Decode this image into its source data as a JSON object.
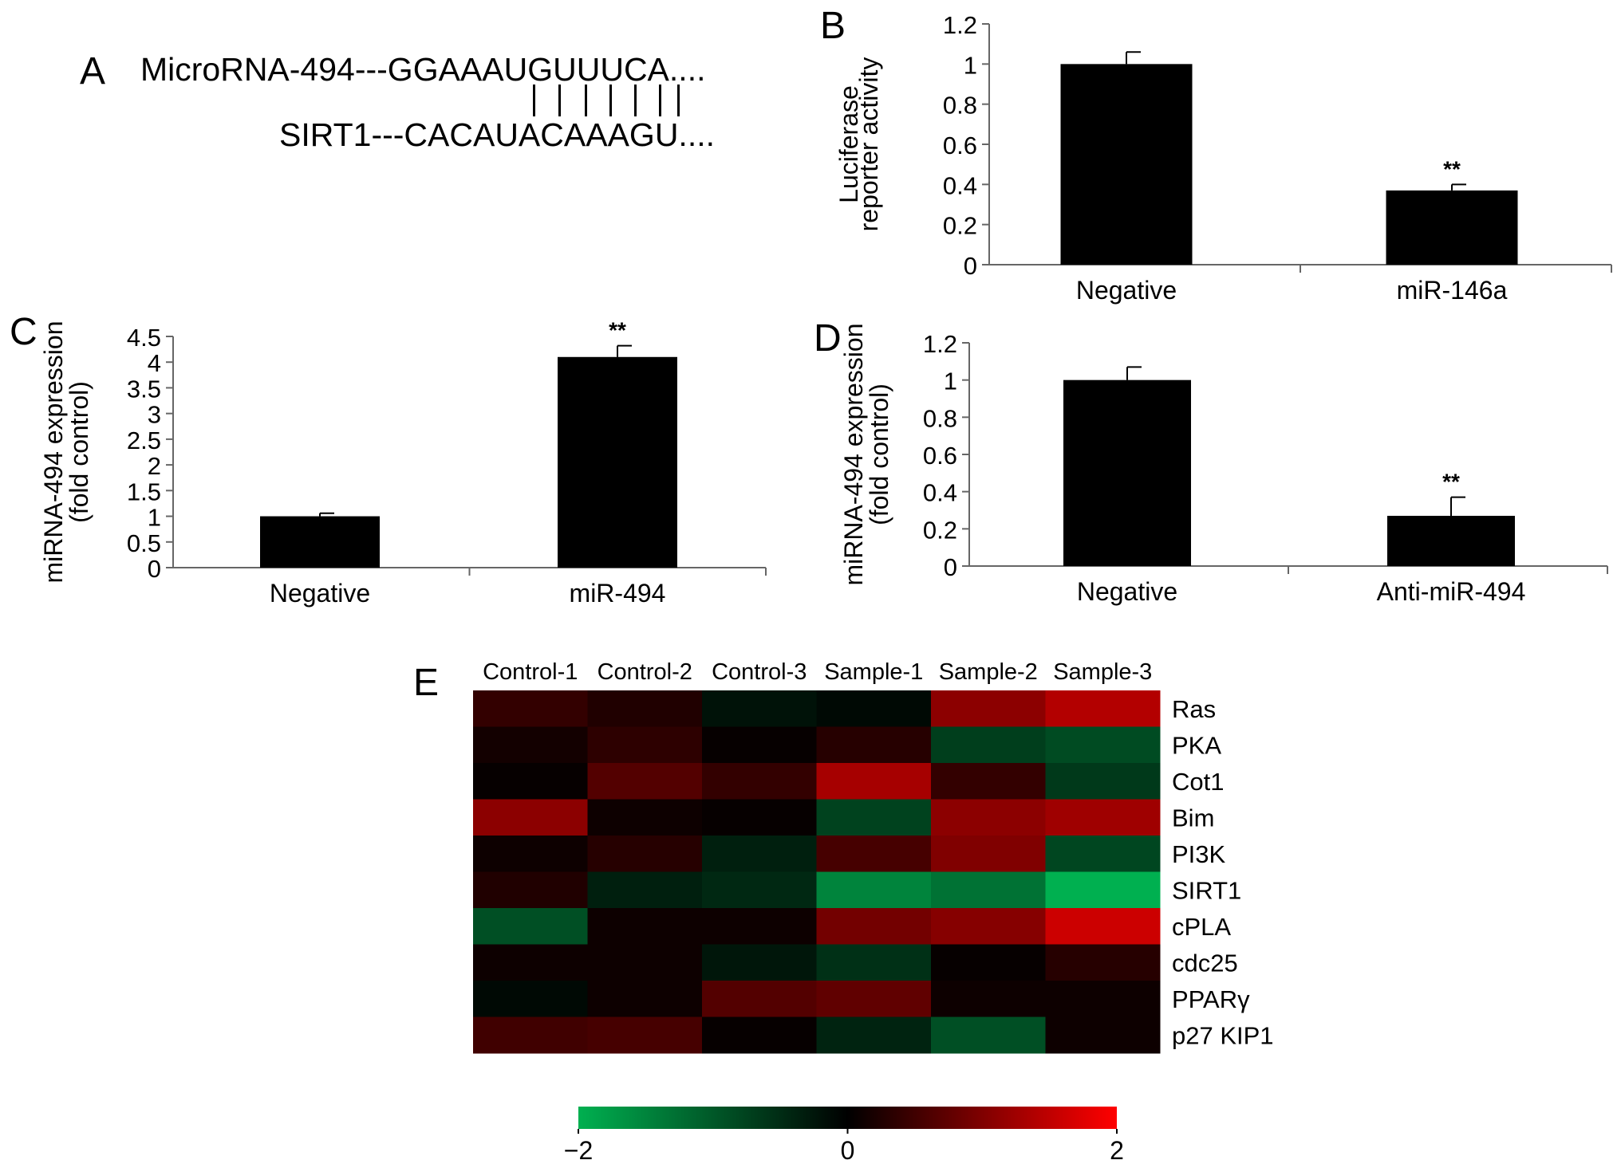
{
  "panel_a": {
    "letter": "A",
    "mirna_seq": "MicroRNA-494---GGAAAUGUUUCA....",
    "target_seq": "SIRT1---CACAUACAAAGU...."
  },
  "chart_data": [
    {
      "panel": "B",
      "type": "bar",
      "categories": [
        "Negative",
        "miR-146a"
      ],
      "values": [
        1.0,
        0.37
      ],
      "errors": [
        0.06,
        0.03
      ],
      "significance": [
        "",
        "**"
      ],
      "ylabel_lines": [
        "Luciferase",
        "reporter activity"
      ],
      "ylim": [
        0,
        1.2
      ],
      "yticks": [
        "0",
        "0.2",
        "0.4",
        "0.6",
        "0.8",
        "1",
        "1.2"
      ],
      "bar_color": "#000000"
    },
    {
      "panel": "C",
      "type": "bar",
      "categories": [
        "Negative",
        "miR-494"
      ],
      "values": [
        1.0,
        4.1
      ],
      "errors": [
        0.06,
        0.22
      ],
      "significance": [
        "",
        "**"
      ],
      "ylabel_lines": [
        "miRNA-494 expression",
        "(fold control)"
      ],
      "ylim": [
        0,
        4.5
      ],
      "yticks": [
        "0",
        "0.5",
        "1",
        "1.5",
        "2",
        "2.5",
        "3",
        "3.5",
        "4",
        "4.5"
      ],
      "bar_color": "#000000"
    },
    {
      "panel": "D",
      "type": "bar",
      "categories": [
        "Negative",
        "Anti-miR-494"
      ],
      "values": [
        1.0,
        0.27
      ],
      "errors": [
        0.07,
        0.1
      ],
      "significance": [
        "",
        "**"
      ],
      "ylabel_lines": [
        "miRNA-494 expression",
        "(fold control)"
      ],
      "ylim": [
        0,
        1.2
      ],
      "yticks": [
        "0",
        "0.2",
        "0.4",
        "0.6",
        "0.8",
        "1",
        "1.2"
      ],
      "bar_color": "#000000"
    },
    {
      "panel": "E",
      "type": "heatmap",
      "columns": [
        "Control-1",
        "Control-2",
        "Control-3",
        "Sample-1",
        "Sample-2",
        "Sample-3"
      ],
      "rows": [
        "Ras",
        "PKA",
        "Cot1",
        "Bim",
        "PI3K",
        "SIRT1",
        "cPLA",
        "cdc25",
        "PPARγ",
        "p27 KIP1"
      ],
      "values": [
        [
          0.4,
          0.25,
          -0.2,
          -0.1,
          1.1,
          1.4
        ],
        [
          0.15,
          0.35,
          0.05,
          0.3,
          -0.7,
          -0.85
        ],
        [
          0.05,
          0.65,
          0.4,
          1.3,
          0.4,
          -0.65
        ],
        [
          1.1,
          0.1,
          0.05,
          -0.75,
          1.1,
          1.25
        ],
        [
          0.1,
          0.3,
          -0.35,
          0.55,
          1.0,
          -0.8
        ],
        [
          0.25,
          -0.35,
          -0.45,
          -1.5,
          -1.3,
          -2.0
        ],
        [
          -0.9,
          0.1,
          0.1,
          0.9,
          1.05,
          1.6
        ],
        [
          0.1,
          0.1,
          -0.25,
          -0.55,
          0.05,
          0.3
        ],
        [
          -0.1,
          0.1,
          0.65,
          0.75,
          0.1,
          0.1
        ],
        [
          0.5,
          0.55,
          0.05,
          -0.4,
          -0.9,
          0.1
        ]
      ],
      "colorbar": {
        "min": -2,
        "max": 2,
        "ticks": [
          "−2",
          "0",
          "2"
        ],
        "low_color": "#00b050",
        "mid_color": "#000000",
        "high_color": "#ff0000"
      }
    }
  ]
}
